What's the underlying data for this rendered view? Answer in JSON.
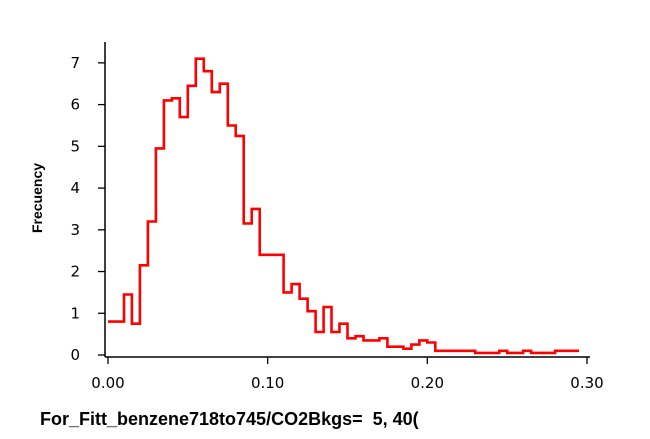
{
  "chart_data": {
    "type": "line",
    "step": true,
    "title": "",
    "xlabel": "For_Fitt_benzene718to745/CO2Bkgs=  5, 40(",
    "ylabel": "Frecuency",
    "xlim": [
      0.0,
      0.3
    ],
    "ylim": [
      0,
      7.5
    ],
    "x_ticks": [
      "0.00",
      "0.10",
      "0.20",
      "0.30"
    ],
    "y_ticks": [
      "0",
      "1",
      "2",
      "3",
      "4",
      "5",
      "6",
      "7"
    ],
    "grid": false,
    "legend": "none",
    "series": [
      {
        "color": "#ff0000",
        "bin_width": 0.005,
        "x": [
          0.0,
          0.005,
          0.01,
          0.015,
          0.02,
          0.025,
          0.03,
          0.035,
          0.04,
          0.045,
          0.05,
          0.055,
          0.06,
          0.065,
          0.07,
          0.075,
          0.08,
          0.085,
          0.09,
          0.095,
          0.1,
          0.105,
          0.11,
          0.115,
          0.12,
          0.125,
          0.13,
          0.135,
          0.14,
          0.145,
          0.15,
          0.155,
          0.16,
          0.165,
          0.17,
          0.175,
          0.18,
          0.185,
          0.19,
          0.195,
          0.2,
          0.205,
          0.21,
          0.215,
          0.22,
          0.225,
          0.23,
          0.235,
          0.24,
          0.245,
          0.25,
          0.255,
          0.26,
          0.265,
          0.27,
          0.275,
          0.28,
          0.285,
          0.29
        ],
        "values": [
          0.8,
          0.8,
          1.45,
          0.75,
          2.15,
          3.2,
          4.95,
          6.1,
          6.15,
          5.7,
          6.45,
          7.1,
          6.8,
          6.3,
          6.5,
          5.5,
          5.25,
          3.15,
          3.5,
          2.4,
          2.4,
          2.4,
          1.5,
          1.7,
          1.35,
          1.05,
          0.55,
          1.15,
          0.55,
          0.75,
          0.4,
          0.45,
          0.35,
          0.35,
          0.4,
          0.2,
          0.2,
          0.15,
          0.25,
          0.35,
          0.3,
          0.1,
          0.1,
          0.1,
          0.1,
          0.1,
          0.05,
          0.05,
          0.05,
          0.1,
          0.05,
          0.05,
          0.1,
          0.05,
          0.05,
          0.05,
          0.1,
          0.1,
          0.1
        ]
      }
    ]
  }
}
